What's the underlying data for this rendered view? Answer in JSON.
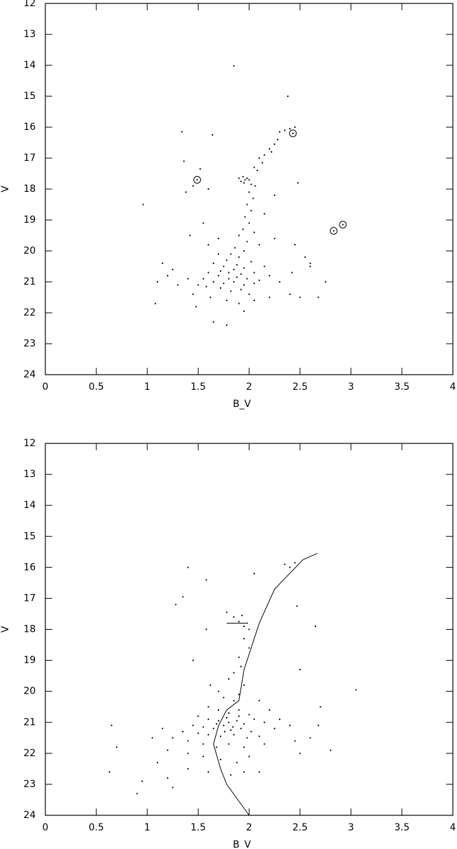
{
  "chart_data": [
    {
      "type": "scatter",
      "xlabel": "B_V",
      "ylabel": "V",
      "color": "#000000",
      "xlim": [
        0,
        4
      ],
      "xticks": [
        0,
        0.5,
        1,
        1.5,
        2,
        2.5,
        3,
        3.5,
        4
      ],
      "ylim": [
        24,
        12
      ],
      "yticks": [
        12,
        13,
        14,
        15,
        16,
        17,
        18,
        19,
        20,
        21,
        22,
        23,
        24
      ],
      "points": {
        "x": [
          1.85,
          2.38,
          1.34,
          1.64,
          2.4,
          2.35,
          2.3,
          2.45,
          2.28,
          2.25,
          2.2,
          2.22,
          2.15,
          2.1,
          2.13,
          2.05,
          2.08,
          1.36,
          1.52,
          1.94,
          1.96,
          1.92,
          1.98,
          1.95,
          2.0,
          1.9,
          2.02,
          2.06,
          1.45,
          1.38,
          2.48,
          1.6,
          2.0,
          2.04,
          1.98,
          2.02,
          1.96,
          2.0,
          1.94,
          1.9,
          2.05,
          1.98,
          2.1,
          1.86,
          1.95,
          0.96,
          1.55,
          2.25,
          2.45,
          2.55,
          2.6,
          1.7,
          1.78,
          1.82,
          1.9,
          2.02,
          1.65,
          1.75,
          1.85,
          1.95,
          2.05,
          2.15,
          1.6,
          1.7,
          1.8,
          1.88,
          1.98,
          2.1,
          2.2,
          1.55,
          1.65,
          1.75,
          1.85,
          1.95,
          2.05,
          2.3,
          1.5,
          1.58,
          1.72,
          1.82,
          1.92,
          2.0,
          1.4,
          1.3,
          1.2,
          1.15,
          1.1,
          1.25,
          1.45,
          1.62,
          1.78,
          1.9,
          2.05,
          2.2,
          2.5,
          2.68,
          2.75,
          1.08,
          1.48,
          1.65,
          1.78,
          1.95,
          2.4,
          1.7,
          1.6,
          2.15,
          2.25,
          1.42,
          2.42,
          2.6,
          1.88,
          1.72,
          1.8,
          1.92
        ],
        "y": [
          14.02,
          15.0,
          16.15,
          16.25,
          16.05,
          16.1,
          16.15,
          16.0,
          16.4,
          16.55,
          16.7,
          16.8,
          16.9,
          17.0,
          17.15,
          17.3,
          17.4,
          17.1,
          17.35,
          17.6,
          17.7,
          17.75,
          17.65,
          17.8,
          17.7,
          17.65,
          17.85,
          17.9,
          17.9,
          18.1,
          17.8,
          18.0,
          18.1,
          18.3,
          18.5,
          18.7,
          18.9,
          19.1,
          19.3,
          19.5,
          19.4,
          19.7,
          19.8,
          19.9,
          20.0,
          18.5,
          19.1,
          19.6,
          19.8,
          20.2,
          20.4,
          20.1,
          20.3,
          20.1,
          20.2,
          20.35,
          20.4,
          20.5,
          20.6,
          20.55,
          20.7,
          20.5,
          20.7,
          20.8,
          20.7,
          20.85,
          20.9,
          20.95,
          20.8,
          20.9,
          21.0,
          21.05,
          21.0,
          21.1,
          21.05,
          21.0,
          21.1,
          21.15,
          21.2,
          21.3,
          21.25,
          21.4,
          20.9,
          21.1,
          20.8,
          20.4,
          21.0,
          20.6,
          21.4,
          21.5,
          21.6,
          21.7,
          21.6,
          21.5,
          21.5,
          21.5,
          21.0,
          21.7,
          21.8,
          22.3,
          22.4,
          21.95,
          21.4,
          19.6,
          19.8,
          18.8,
          18.2,
          19.5,
          20.7,
          20.5,
          20.45,
          20.65,
          20.9,
          20.75
        ]
      },
      "circled": {
        "x": [
          1.49,
          2.43,
          2.83,
          2.92
        ],
        "y": [
          17.7,
          16.2,
          19.35,
          19.15
        ]
      }
    },
    {
      "type": "scatter",
      "xlabel": "B_V",
      "ylabel": "V",
      "color": "#000000",
      "xlim": [
        0,
        4
      ],
      "xticks": [
        0,
        0.5,
        1,
        1.5,
        2,
        2.5,
        3,
        3.5,
        4
      ],
      "ylim": [
        24,
        12
      ],
      "yticks": [
        12,
        13,
        14,
        15,
        16,
        17,
        18,
        19,
        20,
        21,
        22,
        23,
        24
      ],
      "points": {
        "x": [
          1.4,
          1.58,
          2.35,
          2.4,
          2.45,
          2.05,
          2.47,
          1.35,
          1.28,
          1.78,
          1.85,
          1.93,
          1.98,
          1.95,
          1.9,
          2.0,
          1.58,
          2.65,
          1.95,
          2.0,
          1.9,
          1.92,
          1.85,
          1.8,
          1.95,
          2.5,
          1.45,
          1.62,
          1.7,
          1.75,
          1.85,
          1.9,
          2.1,
          3.05,
          2.7,
          1.6,
          1.7,
          1.8,
          1.9,
          2.0,
          2.2,
          1.5,
          1.6,
          1.7,
          1.8,
          1.88,
          1.95,
          2.05,
          2.15,
          2.3,
          1.45,
          1.55,
          1.65,
          1.75,
          1.82,
          1.92,
          2.02,
          2.25,
          2.4,
          1.35,
          1.5,
          1.6,
          1.72,
          1.85,
          1.98,
          2.1,
          1.25,
          1.4,
          1.55,
          1.68,
          1.8,
          1.95,
          2.15,
          2.45,
          2.6,
          2.68,
          1.15,
          1.05,
          1.2,
          1.4,
          1.55,
          1.72,
          1.88,
          2.0,
          2.5,
          2.8,
          0.65,
          0.7,
          0.63,
          0.9,
          0.95,
          1.1,
          1.2,
          1.25,
          1.4,
          1.6,
          1.82,
          1.95,
          2.1,
          1.78,
          1.84,
          1.76,
          1.9,
          1.68
        ],
        "y": [
          16.0,
          16.4,
          15.9,
          16.0,
          15.85,
          16.2,
          17.25,
          16.95,
          17.2,
          17.45,
          17.6,
          17.55,
          17.8,
          17.9,
          17.75,
          18.0,
          18.0,
          17.9,
          18.3,
          18.6,
          18.9,
          19.2,
          19.4,
          19.6,
          19.8,
          19.3,
          19.0,
          19.8,
          20.0,
          20.2,
          20.3,
          20.1,
          20.3,
          19.95,
          20.5,
          20.5,
          20.6,
          20.7,
          20.6,
          20.75,
          20.6,
          20.8,
          20.9,
          20.95,
          21.0,
          20.95,
          21.05,
          20.9,
          21.0,
          20.9,
          21.1,
          21.15,
          21.2,
          21.1,
          21.25,
          21.2,
          21.3,
          21.2,
          21.1,
          21.3,
          21.35,
          21.4,
          21.45,
          21.4,
          21.5,
          21.45,
          21.5,
          21.6,
          21.7,
          21.8,
          21.7,
          21.8,
          21.7,
          21.6,
          21.5,
          21.1,
          21.2,
          21.5,
          21.9,
          22.0,
          22.1,
          22.2,
          22.3,
          22.1,
          22.0,
          21.9,
          21.1,
          21.8,
          22.6,
          23.3,
          22.9,
          22.3,
          22.8,
          23.1,
          22.5,
          22.6,
          22.7,
          22.6,
          22.6,
          20.85,
          21.15,
          21.3,
          20.8,
          21.05
        ]
      },
      "line": {
        "x": [
          2.67,
          2.53,
          2.25,
          2.1,
          1.95,
          1.9,
          1.78,
          1.7,
          1.65,
          1.72,
          1.78,
          2.0,
          null,
          1.78,
          1.97
        ],
        "y": [
          15.55,
          15.75,
          16.7,
          17.8,
          19.3,
          20.3,
          20.6,
          21.1,
          21.7,
          22.5,
          23.0,
          24.0,
          null,
          17.8,
          17.8
        ]
      }
    }
  ]
}
